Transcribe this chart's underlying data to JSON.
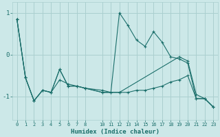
{
  "xlabel": "Humidex (Indice chaleur)",
  "bg_color": "#cce8e8",
  "grid_color": "#aacfcf",
  "line_color": "#1a6e6a",
  "series": [
    {
      "x": [
        0,
        1,
        2,
        3,
        4,
        5,
        6,
        7,
        8,
        10,
        11,
        12,
        13,
        14,
        15,
        16,
        17,
        18,
        19,
        20,
        21,
        22,
        23
      ],
      "y": [
        0.85,
        -0.55,
        -1.1,
        -0.85,
        -0.9,
        -0.6,
        -0.7,
        -0.75,
        -0.8,
        -0.85,
        -0.9,
        1.0,
        0.7,
        0.35,
        0.2,
        0.55,
        0.3,
        -0.05,
        -0.1,
        -0.2,
        -1.05,
        -1.05,
        -1.25
      ]
    },
    {
      "x": [
        0,
        1,
        2,
        3,
        4,
        5,
        6,
        7,
        8,
        10,
        11,
        12,
        13,
        14,
        15,
        16,
        17,
        18,
        19,
        20,
        21,
        22,
        23
      ],
      "y": [
        0.85,
        -0.55,
        -1.1,
        -0.85,
        -0.9,
        -0.35,
        -0.75,
        -0.75,
        -0.8,
        -0.9,
        -0.9,
        -0.9,
        -0.9,
        -0.85,
        -0.85,
        -0.8,
        -0.75,
        -0.65,
        -0.6,
        -0.5,
        -1.05,
        -1.05,
        -1.25
      ]
    },
    {
      "x": [
        0,
        1,
        2,
        3,
        4,
        5,
        6,
        7,
        8,
        10,
        12,
        19,
        20,
        21,
        22,
        23
      ],
      "y": [
        0.85,
        -0.55,
        -1.1,
        -0.85,
        -0.9,
        -0.35,
        -0.75,
        -0.75,
        -0.8,
        -0.9,
        -0.9,
        -0.05,
        -0.15,
        -0.95,
        -1.05,
        -1.25
      ]
    }
  ],
  "xlim": [
    -0.5,
    23.5
  ],
  "ylim": [
    -1.55,
    1.25
  ],
  "yticks": [
    -1,
    0,
    1
  ],
  "ytick_labels": [
    "-1",
    "0",
    "1"
  ],
  "xticks": [
    0,
    1,
    2,
    3,
    4,
    5,
    6,
    7,
    8,
    10,
    11,
    12,
    13,
    14,
    15,
    16,
    17,
    18,
    19,
    20,
    21,
    22,
    23
  ],
  "figsize": [
    3.2,
    2.0
  ],
  "dpi": 100
}
